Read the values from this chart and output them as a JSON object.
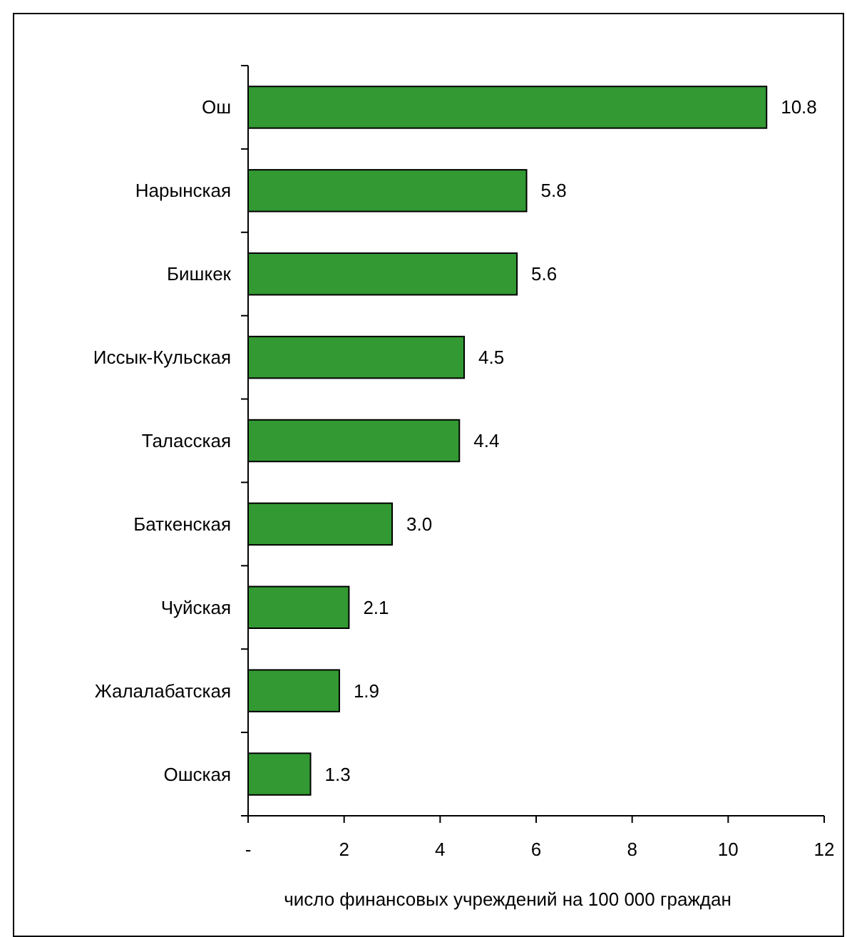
{
  "chart_data": {
    "type": "bar",
    "orientation": "horizontal",
    "xlabel": "число финансовых учреждений на 100 000 граждан",
    "categories": [
      "Ош",
      "Нарынская",
      "Бишкек",
      "Иссык-Кульская",
      "Таласская",
      "Баткенская",
      "Чуйская",
      "Жалалабатская",
      "Ошская"
    ],
    "values": [
      10.8,
      5.8,
      5.6,
      4.5,
      4.4,
      3.0,
      2.1,
      1.9,
      1.3
    ],
    "value_labels": [
      "10.8",
      "5.8",
      "5.6",
      "4.5",
      "4.4",
      "3.0",
      "2.1",
      "1.9",
      "1.3"
    ],
    "color": "#339933",
    "xlim": [
      0,
      12
    ],
    "xticks": [
      {
        "value": 0,
        "label": "-"
      },
      2,
      4,
      6,
      8,
      10,
      12
    ],
    "grid": false
  }
}
